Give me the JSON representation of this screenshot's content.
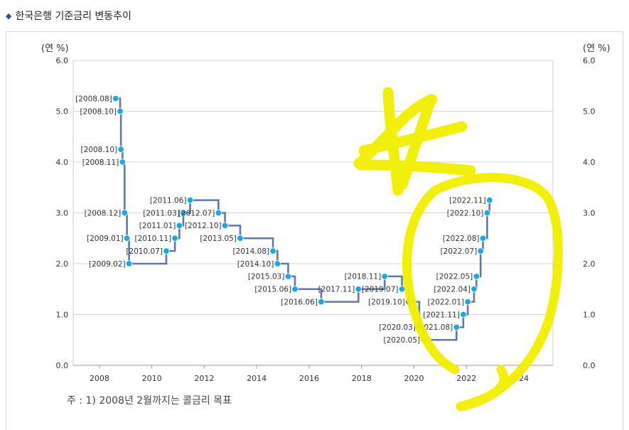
{
  "page": {
    "title": "한국은행 기준금리 변동추이",
    "bullet": "◆",
    "footnote": "주 : 1) 2008년 2월까지는 콜금리 목표"
  },
  "chart_data": {
    "type": "line",
    "step": true,
    "y_unit_left": "(연 %)",
    "y_unit_right": "(연 %)",
    "ylim": [
      0,
      6
    ],
    "yticks": [
      "0.0",
      "1.0",
      "2.0",
      "3.0",
      "4.0",
      "5.0",
      "6.0"
    ],
    "xlim": [
      2007.0,
      2025.3
    ],
    "xticks": [
      "2008",
      "2010",
      "2012",
      "2014",
      "2016",
      "2018",
      "2020",
      "2022",
      "2024"
    ],
    "grid": true,
    "line_color": "#5b79ad",
    "marker_color": "#19a9e0",
    "marker_color_alt": "#1f9a45",
    "annotations": [
      "hand-drawn yellow star",
      "hand-drawn yellow circle around 2020–2022 data"
    ],
    "points": [
      {
        "label": "[2008.08]",
        "x": 2008.62,
        "y": 5.25
      },
      {
        "label": "[2008.10]",
        "x": 2008.79,
        "y": 5.0
      },
      {
        "label": "[2008.10]",
        "x": 2008.82,
        "y": 4.25
      },
      {
        "label": "[2008.11]",
        "x": 2008.88,
        "y": 4.0
      },
      {
        "label": "[2008.12]",
        "x": 2008.96,
        "y": 3.0
      },
      {
        "label": "[2009.01]",
        "x": 2009.05,
        "y": 2.5
      },
      {
        "label": "[2009.02]",
        "x": 2009.13,
        "y": 2.0
      },
      {
        "label": "[2010.07]",
        "x": 2010.55,
        "y": 2.25
      },
      {
        "label": "[2010.11]",
        "x": 2010.88,
        "y": 2.5
      },
      {
        "label": "[2011.01]",
        "x": 2011.05,
        "y": 2.75
      },
      {
        "label": "[2011.03]",
        "x": 2011.2,
        "y": 3.0
      },
      {
        "label": "[2011.06]",
        "x": 2011.46,
        "y": 3.25
      },
      {
        "label": "[2012.07]",
        "x": 2012.54,
        "y": 3.0
      },
      {
        "label": "[2012.10]",
        "x": 2012.79,
        "y": 2.75
      },
      {
        "label": "[2013.05]",
        "x": 2013.37,
        "y": 2.5
      },
      {
        "label": "[2014.08]",
        "x": 2014.62,
        "y": 2.25
      },
      {
        "label": "[2014.10]",
        "x": 2014.79,
        "y": 2.0
      },
      {
        "label": "[2015.03]",
        "x": 2015.2,
        "y": 1.75
      },
      {
        "label": "[2015.06]",
        "x": 2015.46,
        "y": 1.5
      },
      {
        "label": "[2016.06]",
        "x": 2016.46,
        "y": 1.25
      },
      {
        "label": "[2017.11]",
        "x": 2017.88,
        "y": 1.5
      },
      {
        "label": "[2018.11]",
        "x": 2018.88,
        "y": 1.75
      },
      {
        "label": "[2019.07]",
        "x": 2019.54,
        "y": 1.5
      },
      {
        "label": "[2019.10]",
        "x": 2019.79,
        "y": 1.25,
        "alt": true
      },
      {
        "label": "[2020.03]",
        "x": 2020.2,
        "y": 0.75,
        "alt": true
      },
      {
        "label": "[2020.05]",
        "x": 2020.37,
        "y": 0.5,
        "alt": true
      },
      {
        "label": "[2021.08]",
        "x": 2021.62,
        "y": 0.75
      },
      {
        "label": "[2021.11]",
        "x": 2021.88,
        "y": 1.0
      },
      {
        "label": "[2022.01]",
        "x": 2022.05,
        "y": 1.25
      },
      {
        "label": "[2022.04]",
        "x": 2022.29,
        "y": 1.5
      },
      {
        "label": "[2022.05]",
        "x": 2022.38,
        "y": 1.75
      },
      {
        "label": "[2022.07]",
        "x": 2022.54,
        "y": 2.25
      },
      {
        "label": "[2022.08]",
        "x": 2022.63,
        "y": 2.5
      },
      {
        "label": "[2022.10]",
        "x": 2022.79,
        "y": 3.0
      },
      {
        "label": "[2022.11]",
        "x": 2022.88,
        "y": 3.25
      }
    ]
  }
}
